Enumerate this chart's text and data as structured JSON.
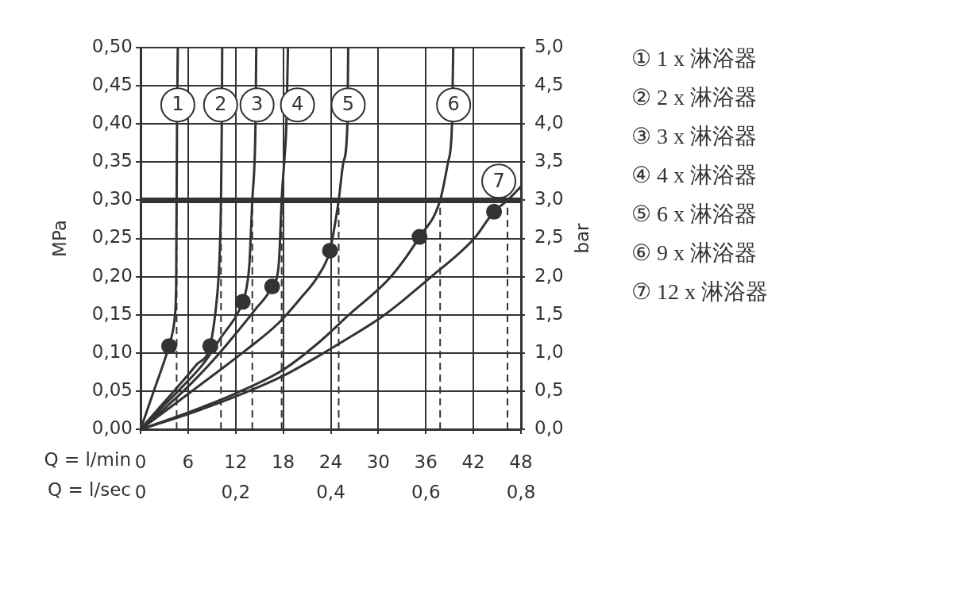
{
  "chart_data": {
    "type": "line",
    "xlabel": "Q = l/min",
    "x2label": "Q = l/sec",
    "ylabel": "MPa",
    "y2label": "bar",
    "xlim": [
      0,
      48
    ],
    "xticks": [
      0,
      6,
      12,
      18,
      24,
      30,
      36,
      42,
      48
    ],
    "x2lim": [
      0,
      0.8
    ],
    "x2ticks": [
      0,
      {
        "value": 0.2,
        "label": "0,2"
      },
      {
        "value": 0.4,
        "label": "0,4"
      },
      {
        "value": 0.6,
        "label": "0,6"
      },
      {
        "value": 0.8,
        "label": "0,8"
      }
    ],
    "ylim": [
      0,
      0.5
    ],
    "yticks": [
      {
        "value": 0,
        "label": "0,00"
      },
      {
        "value": 0.05,
        "label": "0,05"
      },
      {
        "value": 0.1,
        "label": "0,10"
      },
      {
        "value": 0.15,
        "label": "0,15"
      },
      {
        "value": 0.2,
        "label": "0,20"
      },
      {
        "value": 0.25,
        "label": "0,25"
      },
      {
        "value": 0.3,
        "label": "0,30"
      },
      {
        "value": 0.35,
        "label": "0,35"
      },
      {
        "value": 0.4,
        "label": "0,40"
      },
      {
        "value": 0.45,
        "label": "0,45"
      },
      {
        "value": 0.5,
        "label": "0,50"
      }
    ],
    "y2lim": [
      0,
      5
    ],
    "y2ticks": [
      {
        "value": 0,
        "label": "0,0"
      },
      {
        "value": 0.5,
        "label": "0,5"
      },
      {
        "value": 1,
        "label": "1,0"
      },
      {
        "value": 1.5,
        "label": "1,5"
      },
      {
        "value": 2,
        "label": "2,0"
      },
      {
        "value": 2.5,
        "label": "2,5"
      },
      {
        "value": 3,
        "label": "3,0"
      },
      {
        "value": 3.5,
        "label": "3,5"
      },
      {
        "value": 4,
        "label": "4,0"
      },
      {
        "value": 4.5,
        "label": "4,5"
      },
      {
        "value": 5,
        "label": "5,0"
      }
    ],
    "grid": true,
    "legend": "right",
    "marker": "none",
    "line_style": "solid",
    "ref_lines": [
      {
        "axis": "y",
        "value": 0.3,
        "color": "#333333"
      }
    ],
    "annotations": [
      {
        "text": "1",
        "x": 4.7,
        "y": 0.425
      },
      {
        "text": "2",
        "x": 10.1,
        "y": 0.425
      },
      {
        "text": "3",
        "x": 14.7,
        "y": 0.425
      },
      {
        "text": "4",
        "x": 19.8,
        "y": 0.425
      },
      {
        "text": "5",
        "x": 26.2,
        "y": 0.425
      },
      {
        "text": "6",
        "x": 39.5,
        "y": 0.425
      },
      {
        "text": "7",
        "x": 45.2,
        "y": 0.325
      }
    ],
    "series": [
      {
        "name": "① 1 x 淋浴器",
        "color": "#333333",
        "x": [
          0,
          1.8,
          3.6,
          4.0,
          4.3,
          4.45,
          4.5,
          4.52,
          4.55,
          4.6,
          4.7
        ],
        "values": [
          0,
          0.054,
          0.109,
          0.125,
          0.145,
          0.17,
          0.2,
          0.25,
          0.3,
          0.4,
          0.5
        ]
      },
      {
        "name": "② 2 x 淋浴器",
        "color": "#333333",
        "x": [
          0,
          2.0,
          4.3,
          7.0,
          8.8,
          9.1,
          9.4,
          9.85,
          10.05,
          10.15,
          10.25,
          10.3
        ],
        "values": [
          0,
          0.024,
          0.051,
          0.084,
          0.109,
          0.127,
          0.149,
          0.2,
          0.25,
          0.3,
          0.4,
          0.5
        ]
      },
      {
        "name": "③ 3 x 淋浴器",
        "color": "#333333",
        "x": [
          0,
          2.65,
          5.3,
          8.0,
          10.0,
          12.9,
          13.35,
          13.75,
          13.9,
          14.1,
          14.4,
          14.5,
          14.6
        ],
        "values": [
          0,
          0.028,
          0.056,
          0.087,
          0.118,
          0.167,
          0.184,
          0.219,
          0.253,
          0.3,
          0.354,
          0.4,
          0.5
        ]
      },
      {
        "name": "④ 4 x 淋浴器",
        "color": "#333333",
        "x": [
          0,
          3,
          6,
          9.3,
          12.0,
          14.4,
          16.6,
          17.4,
          17.55,
          17.8,
          18.15,
          18.4,
          18.6
        ],
        "values": [
          0,
          0.027,
          0.056,
          0.092,
          0.125,
          0.156,
          0.187,
          0.212,
          0.236,
          0.3,
          0.354,
          0.4,
          0.5
        ]
      },
      {
        "name": "⑤ 6 x 淋浴器",
        "color": "#333333",
        "x": [
          0,
          4.3,
          9.3,
          13.35,
          17.4,
          20.05,
          22.4,
          23.9,
          24.5,
          25.0,
          25.6,
          26.1,
          26.2
        ],
        "values": [
          0,
          0.033,
          0.072,
          0.104,
          0.139,
          0.17,
          0.201,
          0.234,
          0.267,
          0.3,
          0.35,
          0.4,
          0.5
        ]
      },
      {
        "name": "⑥ 9 x 淋浴器",
        "color": "#333333",
        "x": [
          0,
          6,
          12,
          18,
          22.3,
          26.3,
          31.6,
          35.2,
          37.8,
          38.8,
          39.3,
          39.45
        ],
        "values": [
          0,
          0.022,
          0.047,
          0.078,
          0.112,
          0.15,
          0.2,
          0.252,
          0.3,
          0.35,
          0.4,
          0.5
        ]
      },
      {
        "name": "⑦ 12 x 淋浴器",
        "color": "#333333",
        "x": [
          0,
          6,
          12,
          18,
          22.3,
          25.2,
          30.8,
          36.7,
          42.1,
          44.6,
          46.3,
          48
        ],
        "values": [
          0,
          0.02,
          0.043,
          0.07,
          0.095,
          0.113,
          0.15,
          0.2,
          0.25,
          0.285,
          0.3,
          0.318
        ]
      },
      {
        "type": "scatter",
        "color": "#333333",
        "marker": "circle",
        "x": [
          3.6,
          8.8,
          12.9,
          16.6,
          23.9,
          35.2,
          44.6
        ],
        "values": [
          0.109,
          0.109,
          0.167,
          0.187,
          0.234,
          0.252,
          0.285
        ]
      },
      {
        "color": "#333333",
        "line_style": "dashed",
        "x": [
          4.55,
          4.55
        ],
        "values": [
          0,
          0.3
        ]
      },
      {
        "color": "#333333",
        "line_style": "dashed",
        "x": [
          10.15,
          10.15
        ],
        "values": [
          0,
          0.3
        ]
      },
      {
        "color": "#333333",
        "line_style": "dashed",
        "x": [
          14.1,
          14.1
        ],
        "values": [
          0,
          0.3
        ]
      },
      {
        "color": "#333333",
        "line_style": "dashed",
        "x": [
          17.8,
          17.8
        ],
        "values": [
          0,
          0.3
        ]
      },
      {
        "color": "#333333",
        "line_style": "dashed",
        "x": [
          25.0,
          25.0
        ],
        "values": [
          0,
          0.3
        ]
      },
      {
        "color": "#333333",
        "line_style": "dashed",
        "x": [
          37.8,
          37.8
        ],
        "values": [
          0,
          0.3
        ]
      },
      {
        "color": "#333333",
        "line_style": "dashed",
        "x": [
          46.3,
          46.3
        ],
        "values": [
          0,
          0.3
        ]
      }
    ]
  }
}
